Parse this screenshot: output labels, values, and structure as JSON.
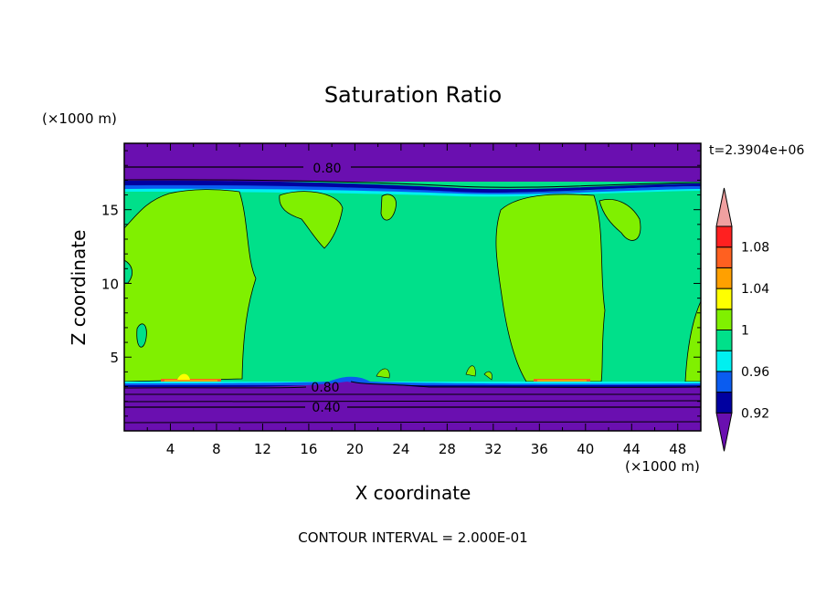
{
  "chart_data": {
    "type": "heatmap",
    "title": "Saturation Ratio",
    "xlabel": "X coordinate",
    "ylabel": "Z coordinate",
    "x_unit": "(×1000 m)",
    "y_unit": "(×1000 m)",
    "time_label": "t=2.3904e+06",
    "footer": "CONTOUR INTERVAL = 2.000E-01",
    "xlim": [
      0,
      50
    ],
    "ylim": [
      0,
      19.5
    ],
    "x_ticks": [
      "4",
      "8",
      "12",
      "16",
      "20",
      "24",
      "28",
      "32",
      "36",
      "40",
      "44",
      "48"
    ],
    "y_ticks": [
      "5",
      "10",
      "15"
    ],
    "colorbar": {
      "labels": [
        "1.08",
        "1.04",
        "1",
        "0.96",
        "0.92"
      ],
      "levels": [
        {
          "color": "#6a0fb0"
        },
        {
          "color": "#0000a0"
        },
        {
          "color": "#0a5cf0"
        },
        {
          "color": "#00f0f0"
        },
        {
          "color": "#00e08a"
        },
        {
          "color": "#80f000"
        },
        {
          "color": "#ffff00"
        },
        {
          "color": "#ffa000"
        },
        {
          "color": "#ff6020"
        },
        {
          "color": "#ff2020"
        },
        {
          "color": "#f0a0a0"
        }
      ]
    },
    "contour_labels": [
      "0.80",
      "0.80",
      "0.40"
    ]
  }
}
